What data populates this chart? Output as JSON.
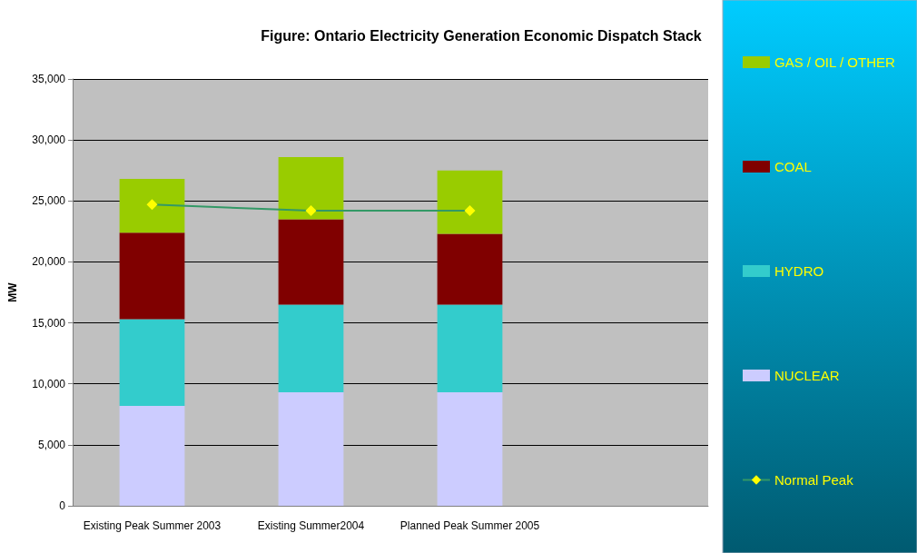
{
  "chart_data": {
    "type": "bar",
    "title": "Figure: Ontario Electricity Generation Economic Dispatch Stack",
    "ylabel": "MW",
    "categories": [
      "Existing Peak Summer 2003",
      "Existing Summer2004",
      "Planned Peak Summer 2005",
      null
    ],
    "stacked": true,
    "series": [
      {
        "name": "NUCLEAR",
        "color": "#ccccff",
        "values": [
          8200,
          9300,
          9300,
          null
        ]
      },
      {
        "name": "HYDRO",
        "color": "#33cccc",
        "values": [
          7100,
          7200,
          7200,
          null
        ]
      },
      {
        "name": "COAL",
        "color": "#800000",
        "values": [
          7100,
          7000,
          5800,
          null
        ]
      },
      {
        "name": "GAS / OIL / OTHER",
        "color": "#99cc00",
        "values": [
          4400,
          5100,
          5200,
          null
        ]
      },
      {
        "name": "Normal Peak",
        "type": "line",
        "color": "#339966",
        "marker": "diamond",
        "values": [
          24700,
          24200,
          24200,
          null
        ]
      }
    ],
    "ylim": [
      0,
      35000
    ],
    "yticks": [
      0,
      {
        "value": 5000,
        "label": "5,000"
      },
      {
        "value": 10000,
        "label": "10,000"
      },
      {
        "value": 15000,
        "label": "15,000"
      },
      {
        "value": 20000,
        "label": "20,000"
      },
      {
        "value": 25000,
        "label": "25,000"
      },
      {
        "value": 30000,
        "label": "30,000"
      },
      {
        "value": 35000,
        "label": "35,000"
      }
    ],
    "grid": "y",
    "legend": "right"
  }
}
